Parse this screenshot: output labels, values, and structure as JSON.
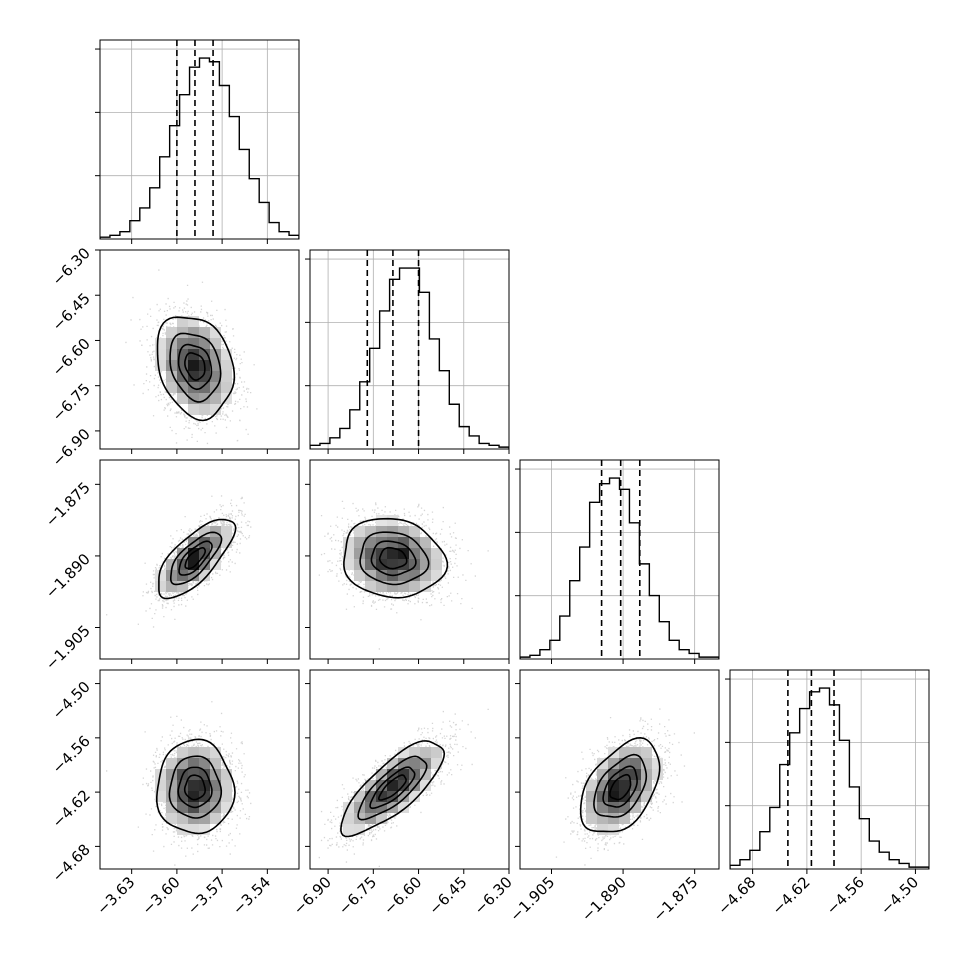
{
  "chart_data": {
    "type": "corner",
    "parameters": [
      {
        "range": [
          -3.651,
          -3.519
        ],
        "ticks": [
          -3.63,
          -3.6,
          -3.57,
          -3.54
        ],
        "tick_labels": [
          "−3.63",
          "−3.60",
          "−3.57",
          "−3.54"
        ]
      },
      {
        "range": [
          -6.96,
          -6.3
        ],
        "ticks": [
          -6.9,
          -6.75,
          -6.6,
          -6.45,
          -6.3
        ],
        "tick_labels": [
          "−6.90",
          "−6.75",
          "−6.60",
          "−6.45",
          "−6.30"
        ]
      },
      {
        "range": [
          -1.9116,
          -1.8699
        ],
        "ticks": [
          -1.905,
          -1.89,
          -1.875
        ],
        "tick_labels": [
          "−1.905",
          "−1.890",
          "−1.875"
        ]
      },
      {
        "range": [
          -4.705,
          -4.485
        ],
        "ticks": [
          -4.68,
          -4.62,
          -4.56,
          -4.5
        ],
        "tick_labels": [
          "−4.68",
          "−4.62",
          "−4.56",
          "−4.50"
        ]
      }
    ],
    "histograms": [
      {
        "edges_start": -3.651,
        "bin_width": 0.0066,
        "counts": [
          1,
          2,
          4,
          10,
          17,
          28,
          45,
          62,
          79,
          94,
          99,
          97,
          84,
          67,
          49,
          33,
          20,
          9,
          4,
          2
        ],
        "quantiles": [
          -3.6,
          -3.588,
          -3.576
        ]
      },
      {
        "edges_start": -6.96,
        "bin_width": 0.033,
        "counts": [
          2,
          3,
          6,
          11,
          21,
          36,
          54,
          74,
          91,
          97,
          97,
          84,
          59,
          42,
          24,
          12,
          7,
          3,
          2,
          1
        ],
        "quantiles": [
          -6.77,
          -6.685,
          -6.6
        ]
      },
      {
        "edges_start": -1.9116,
        "bin_width": 0.002085,
        "counts": [
          1,
          2,
          5,
          10,
          23,
          42,
          60,
          84,
          94,
          97,
          91,
          73,
          51,
          34,
          20,
          10,
          5,
          3,
          1,
          1
        ],
        "quantiles": [
          -1.8945,
          -1.8905,
          -1.8865
        ]
      },
      {
        "edges_start": -4.705,
        "bin_width": 0.011,
        "counts": [
          2,
          5,
          10,
          20,
          33,
          56,
          73,
          86,
          95,
          97,
          88,
          69,
          44,
          27,
          15,
          9,
          5,
          3,
          1,
          1
        ],
        "quantiles": [
          -4.641,
          -4.615,
          -4.59
        ]
      }
    ],
    "pairs": [
      {
        "x": 0,
        "y": 1,
        "center": [
          -3.588,
          -6.685
        ],
        "sd": [
          0.0123,
          0.082
        ],
        "corr": -0.22
      },
      {
        "x": 0,
        "y": 2,
        "center": [
          -3.588,
          -1.8905
        ],
        "sd": [
          0.0123,
          0.004
        ],
        "corr": 0.72
      },
      {
        "x": 1,
        "y": 2,
        "center": [
          -6.685,
          -1.8905
        ],
        "sd": [
          0.082,
          0.004
        ],
        "corr": -0.1
      },
      {
        "x": 0,
        "y": 3,
        "center": [
          -3.588,
          -4.615
        ],
        "sd": [
          0.0123,
          0.025
        ],
        "corr": 0.0
      },
      {
        "x": 1,
        "y": 3,
        "center": [
          -6.685,
          -4.615
        ],
        "sd": [
          0.082,
          0.025
        ],
        "corr": 0.78
      },
      {
        "x": 2,
        "y": 3,
        "center": [
          -1.8905,
          -4.615
        ],
        "sd": [
          0.004,
          0.025
        ],
        "corr": 0.45
      }
    ],
    "contour_levels_sigma": [
      0.5,
      1.0,
      1.5,
      2.0
    ],
    "grid": true,
    "colors": {
      "scatter": "#b3b3b3",
      "contour": "#000000",
      "line": "#000000",
      "grid": "#b0b0b0"
    }
  }
}
